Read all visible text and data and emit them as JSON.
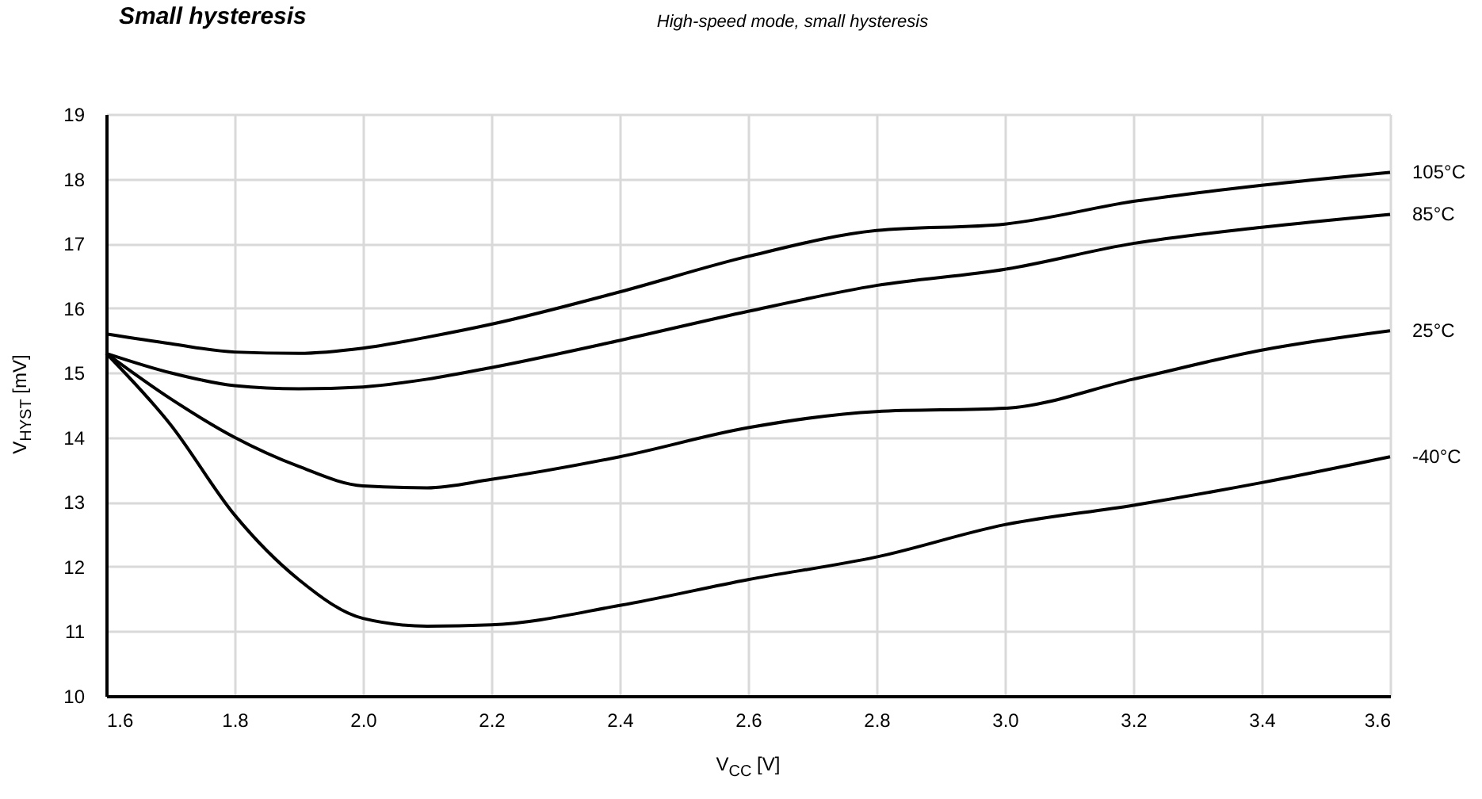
{
  "chart_data": {
    "type": "line",
    "title": "Small hysteresis",
    "subtitle": "High-speed mode, small hysteresis",
    "xlabel": "V$_{CC}$ [V]",
    "ylabel": "V$_{HYST}$ [mV]",
    "x": [
      1.6,
      1.7,
      1.8,
      1.9,
      2.0,
      2.1,
      2.2,
      2.4,
      2.6,
      2.8,
      3.0,
      3.2,
      3.4,
      3.6
    ],
    "series": [
      {
        "name": "105°C",
        "color": "#000000",
        "values": [
          15.6,
          15.45,
          15.32,
          15.3,
          15.38,
          15.55,
          15.75,
          16.25,
          16.8,
          17.2,
          17.3,
          17.65,
          17.9,
          18.1
        ]
      },
      {
        "name": "85°C",
        "color": "#000000",
        "values": [
          15.3,
          15.0,
          14.8,
          14.75,
          14.78,
          14.9,
          15.08,
          15.5,
          15.95,
          16.35,
          16.6,
          17.0,
          17.25,
          17.45
        ]
      },
      {
        "name": "25°C",
        "color": "#000000",
        "values": [
          15.3,
          14.6,
          14.0,
          13.55,
          13.25,
          13.22,
          13.35,
          13.7,
          14.15,
          14.4,
          14.45,
          14.9,
          15.35,
          15.65
        ]
      },
      {
        "name": "-40°C",
        "color": "#000000",
        "values": [
          15.3,
          14.2,
          12.8,
          11.8,
          11.2,
          11.08,
          11.1,
          11.4,
          11.8,
          12.15,
          12.65,
          12.95,
          13.3,
          13.7
        ]
      }
    ],
    "xlim": [
      1.6,
      3.6
    ],
    "xticks": [
      {
        "value": 1.6,
        "label": "1.6"
      },
      {
        "value": 1.8,
        "label": "1.8"
      },
      {
        "value": 2.0,
        "label": "2.0"
      },
      {
        "value": 2.2,
        "label": "2.2"
      },
      {
        "value": 2.4,
        "label": "2.4"
      },
      {
        "value": 2.6,
        "label": "2.6"
      },
      {
        "value": 2.8,
        "label": "2.8"
      },
      {
        "value": 3.0,
        "label": "3.0"
      },
      {
        "value": 3.2,
        "label": "3.2"
      },
      {
        "value": 3.4,
        "label": "3.4"
      },
      {
        "value": 3.6,
        "label": "3.6"
      }
    ],
    "ylim": [
      10,
      19
    ],
    "yticks": [
      10,
      11,
      12,
      13,
      14,
      15,
      16,
      17,
      18,
      19
    ],
    "grid": true,
    "legend": false,
    "marker": "none",
    "line_style": "solid"
  }
}
